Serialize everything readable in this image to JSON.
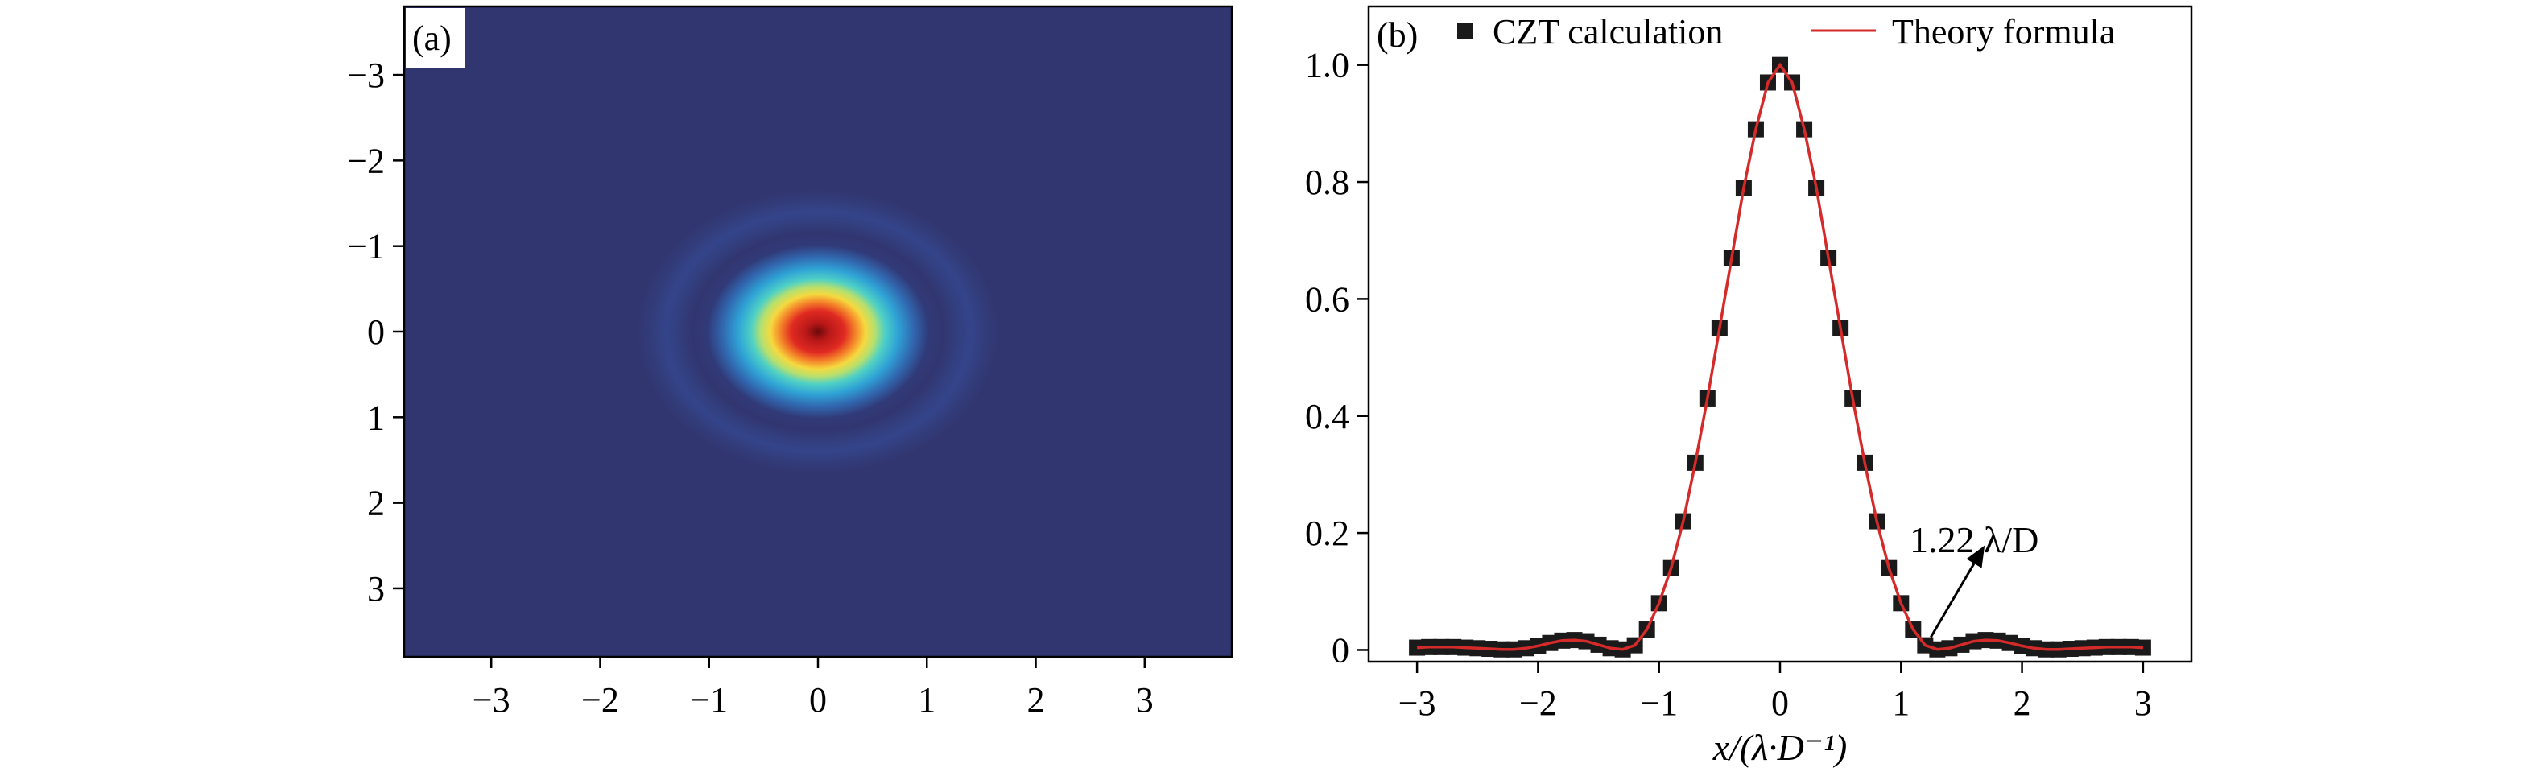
{
  "chart_data": [
    {
      "panel": "(a)",
      "type": "heatmap",
      "x_ticks": [
        "−3",
        "−2",
        "−1",
        "0",
        "1",
        "2",
        "3"
      ],
      "y_ticks": [
        "−3",
        "−2",
        "−1",
        "0",
        "1",
        "2",
        "3"
      ],
      "x_tick_values": [
        -3,
        -2,
        -1,
        0,
        1,
        2,
        3
      ],
      "y_tick_values": [
        -3,
        -2,
        -1,
        0,
        1,
        2,
        3
      ],
      "xlim": [
        -3.8,
        3.8
      ],
      "ylim": [
        -3.8,
        3.8
      ],
      "y_inverted": true,
      "colormap": [
        "#313670",
        "#2d6db5",
        "#3cc7d6",
        "#a9e07e",
        "#f4e145",
        "#f49a2c",
        "#dc2a23",
        "#760b0b"
      ],
      "background_color": "#313670",
      "pattern": "Airy disk: central peak at (0,0) with first ring near radius 1.64"
    },
    {
      "panel": "(b)",
      "type": "line",
      "x_ticks": [
        "−3",
        "−2",
        "−1",
        "0",
        "1",
        "2",
        "3"
      ],
      "x_tick_values": [
        -3,
        -2,
        -1,
        0,
        1,
        2,
        3
      ],
      "y_ticks": [
        "0",
        "0.2",
        "0.4",
        "0.6",
        "0.8",
        "1.0"
      ],
      "y_tick_values": [
        0,
        0.2,
        0.4,
        0.6,
        0.8,
        1.0
      ],
      "xlim": [
        -3.4,
        3.4
      ],
      "ylim": [
        -0.02,
        1.1
      ],
      "xlabel": "x/(λ·D⁻¹)",
      "legend_position": "top",
      "series": [
        {
          "name": "CZT calculation",
          "style": "square-markers",
          "color": "#1a1a1a",
          "x": [
            -3.0,
            -2.9,
            -2.8,
            -2.7,
            -2.6,
            -2.5,
            -2.4,
            -2.3,
            -2.2,
            -2.1,
            -2.0,
            -1.9,
            -1.8,
            -1.7,
            -1.6,
            -1.5,
            -1.4,
            -1.3,
            -1.2,
            -1.1,
            -1.0,
            -0.9,
            -0.8,
            -0.7,
            -0.6,
            -0.5,
            -0.4,
            -0.3,
            -0.2,
            -0.1,
            0.0,
            0.1,
            0.2,
            0.3,
            0.4,
            0.5,
            0.6,
            0.7,
            0.8,
            0.9,
            1.0,
            1.1,
            1.2,
            1.3,
            1.4,
            1.5,
            1.6,
            1.7,
            1.8,
            1.9,
            2.0,
            2.1,
            2.2,
            2.3,
            2.4,
            2.5,
            2.6,
            2.7,
            2.8,
            2.9,
            3.0
          ],
          "y": [
            0.004,
            0.005,
            0.005,
            0.005,
            0.004,
            0.003,
            0.002,
            0.001,
            0.001,
            0.003,
            0.007,
            0.012,
            0.016,
            0.017,
            0.015,
            0.009,
            0.003,
            0.001,
            0.008,
            0.035,
            0.08,
            0.14,
            0.22,
            0.32,
            0.43,
            0.55,
            0.67,
            0.79,
            0.89,
            0.97,
            1.0,
            0.97,
            0.89,
            0.79,
            0.67,
            0.55,
            0.43,
            0.32,
            0.22,
            0.14,
            0.08,
            0.035,
            0.008,
            0.001,
            0.003,
            0.009,
            0.015,
            0.017,
            0.016,
            0.012,
            0.007,
            0.003,
            0.001,
            0.001,
            0.002,
            0.003,
            0.004,
            0.005,
            0.005,
            0.005,
            0.004
          ]
        },
        {
          "name": "Theory formula",
          "style": "line",
          "color": "#d42a2a",
          "x": [
            -3.0,
            -2.9,
            -2.8,
            -2.7,
            -2.6,
            -2.5,
            -2.4,
            -2.3,
            -2.2,
            -2.1,
            -2.0,
            -1.9,
            -1.8,
            -1.7,
            -1.6,
            -1.5,
            -1.4,
            -1.3,
            -1.2,
            -1.1,
            -1.0,
            -0.9,
            -0.8,
            -0.7,
            -0.6,
            -0.5,
            -0.4,
            -0.3,
            -0.2,
            -0.1,
            0.0,
            0.1,
            0.2,
            0.3,
            0.4,
            0.5,
            0.6,
            0.7,
            0.8,
            0.9,
            1.0,
            1.1,
            1.2,
            1.3,
            1.4,
            1.5,
            1.6,
            1.7,
            1.8,
            1.9,
            2.0,
            2.1,
            2.2,
            2.3,
            2.4,
            2.5,
            2.6,
            2.7,
            2.8,
            2.9,
            3.0
          ],
          "y": [
            0.004,
            0.005,
            0.005,
            0.005,
            0.004,
            0.003,
            0.002,
            0.001,
            0.001,
            0.003,
            0.007,
            0.012,
            0.016,
            0.017,
            0.015,
            0.009,
            0.003,
            0.001,
            0.008,
            0.035,
            0.08,
            0.14,
            0.22,
            0.32,
            0.43,
            0.55,
            0.67,
            0.79,
            0.89,
            0.97,
            1.0,
            0.97,
            0.89,
            0.79,
            0.67,
            0.55,
            0.43,
            0.32,
            0.22,
            0.14,
            0.08,
            0.035,
            0.008,
            0.001,
            0.003,
            0.009,
            0.015,
            0.017,
            0.016,
            0.012,
            0.007,
            0.003,
            0.001,
            0.001,
            0.002,
            0.003,
            0.004,
            0.005,
            0.005,
            0.005,
            0.004
          ]
        }
      ],
      "annotation": {
        "text": "1.22 λ/D",
        "target_x": 1.22,
        "target_y": 0.0
      }
    }
  ]
}
